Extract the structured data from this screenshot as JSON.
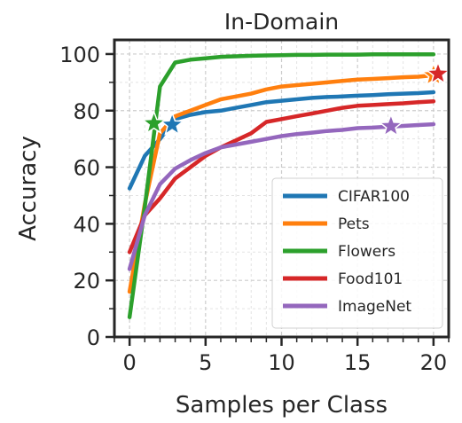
{
  "chart_data": {
    "type": "line",
    "title": "In-Domain",
    "xlabel": "Samples per Class",
    "ylabel": "Accuracy",
    "xlim": [
      -1,
      21
    ],
    "ylim": [
      0,
      105
    ],
    "xticks": [
      0,
      5,
      10,
      15,
      20
    ],
    "yticks": [
      0,
      20,
      40,
      60,
      80,
      100
    ],
    "grid": true,
    "legend_position": "lower-right",
    "series": [
      {
        "name": "CIFAR100",
        "color": "#1f77b4",
        "x": [
          0,
          1,
          2,
          3,
          4,
          5,
          6,
          7,
          8,
          9,
          10,
          11,
          12,
          13,
          14,
          15,
          16,
          17,
          18,
          19,
          20
        ],
        "y": [
          52.5,
          64,
          70,
          77,
          78.5,
          79.5,
          80,
          81,
          82,
          83,
          83.5,
          84,
          84.5,
          84.8,
          85,
          85.3,
          85.5,
          85.8,
          86,
          86.2,
          86.5
        ],
        "star": {
          "x": 2.8,
          "y": 75
        }
      },
      {
        "name": "Pets",
        "color": "#ff7f0e",
        "x": [
          0,
          1,
          2,
          3,
          4,
          5,
          6,
          7,
          8,
          9,
          10,
          11,
          12,
          13,
          14,
          15,
          16,
          17,
          18,
          19,
          20
        ],
        "y": [
          16,
          47,
          72,
          78,
          80,
          82,
          84,
          85,
          86,
          87.5,
          88.5,
          89,
          89.5,
          90,
          90.5,
          91,
          91.2,
          91.5,
          91.8,
          92,
          92.5
        ],
        "star": {
          "x": 20,
          "y": 92.5
        }
      },
      {
        "name": "Flowers",
        "color": "#2ca02c",
        "x": [
          0,
          1,
          2,
          3,
          4,
          5,
          6,
          7,
          8,
          9,
          10,
          11,
          12,
          13,
          14,
          15,
          16,
          17,
          18,
          19,
          20
        ],
        "y": [
          7,
          46,
          88.5,
          97,
          98,
          98.5,
          99,
          99.2,
          99.4,
          99.5,
          99.6,
          99.7,
          99.7,
          99.8,
          99.8,
          99.8,
          99.9,
          99.9,
          99.9,
          99.9,
          99.9
        ],
        "star": {
          "x": 1.6,
          "y": 75.5
        }
      },
      {
        "name": "Food101",
        "color": "#d62728",
        "x": [
          0,
          1,
          2,
          3,
          4,
          5,
          6,
          7,
          8,
          9,
          10,
          11,
          12,
          13,
          14,
          15,
          16,
          17,
          18,
          19,
          20
        ],
        "y": [
          30,
          43,
          49,
          56,
          60,
          64,
          67,
          69.5,
          72,
          76,
          77,
          78,
          79,
          80,
          81,
          81.7,
          82,
          82.3,
          82.6,
          83,
          83.3
        ],
        "star": {
          "x": 20.3,
          "y": 93
        }
      },
      {
        "name": "ImageNet",
        "color": "#9467bd",
        "x": [
          0,
          1,
          2,
          3,
          4,
          5,
          6,
          7,
          8,
          9,
          10,
          11,
          12,
          13,
          14,
          15,
          16,
          17,
          18,
          19,
          20
        ],
        "y": [
          24,
          43,
          54,
          59.5,
          62.5,
          65,
          67,
          68,
          69,
          70,
          71,
          71.7,
          72.2,
          72.8,
          73.2,
          73.8,
          74,
          74.3,
          74.6,
          74.9,
          75.2
        ],
        "star": {
          "x": 17.2,
          "y": 74.5
        }
      }
    ]
  }
}
